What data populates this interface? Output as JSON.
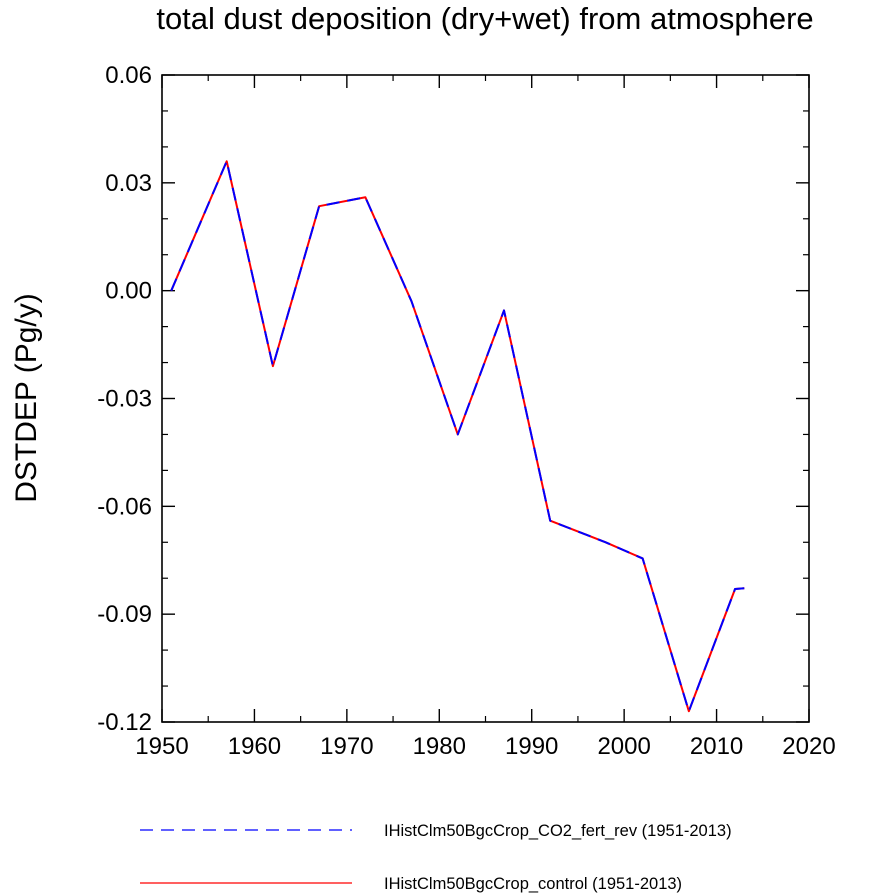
{
  "chart_data": {
    "type": "line",
    "title": "total dust deposition (dry+wet) from atmosphere",
    "ylabel": "DSTDEP  (Pg/y)",
    "xlabel": "",
    "xlim": [
      1950,
      2020
    ],
    "ylim": [
      -0.12,
      0.06
    ],
    "x_ticks": [
      1950,
      1960,
      1970,
      1980,
      1990,
      2000,
      2010,
      2020
    ],
    "x_tick_labels": [
      "1950",
      "1960",
      "1970",
      "1980",
      "1990",
      "2000",
      "2010",
      "2020"
    ],
    "y_ticks": [
      0.06,
      0.03,
      0.0,
      -0.03,
      -0.06,
      -0.09,
      -0.12
    ],
    "y_tick_labels": [
      "0.06",
      "0.03",
      "0.00",
      "-0.03",
      "-0.06",
      "-0.09",
      "-0.12"
    ],
    "grid": false,
    "legend_position": "bottom",
    "series": [
      {
        "name": "IHistClm50BgcCrop_CO2_fert_rev (1951-2013)",
        "color": "#0000ff",
        "line_style": "dashed",
        "x": [
          1951,
          1957,
          1962,
          1967,
          1972,
          1977,
          1982,
          1987,
          1992,
          1998,
          2002,
          2007,
          2012,
          2013
        ],
        "y": [
          0.0,
          0.036,
          -0.021,
          0.0235,
          0.026,
          -0.003,
          -0.04,
          -0.0055,
          -0.064,
          -0.07,
          -0.0745,
          -0.117,
          -0.083,
          -0.0828
        ]
      },
      {
        "name": "IHistClm50BgcCrop_control (1951-2013)",
        "color": "#ff0000",
        "line_style": "solid",
        "x": [
          1951,
          1957,
          1962,
          1967,
          1972,
          1977,
          1982,
          1987,
          1992,
          1998,
          2002,
          2007,
          2012,
          2013
        ],
        "y": [
          0.0,
          0.036,
          -0.021,
          0.0235,
          0.026,
          -0.003,
          -0.04,
          -0.0055,
          -0.064,
          -0.07,
          -0.0745,
          -0.117,
          -0.083,
          -0.0828
        ]
      }
    ]
  }
}
